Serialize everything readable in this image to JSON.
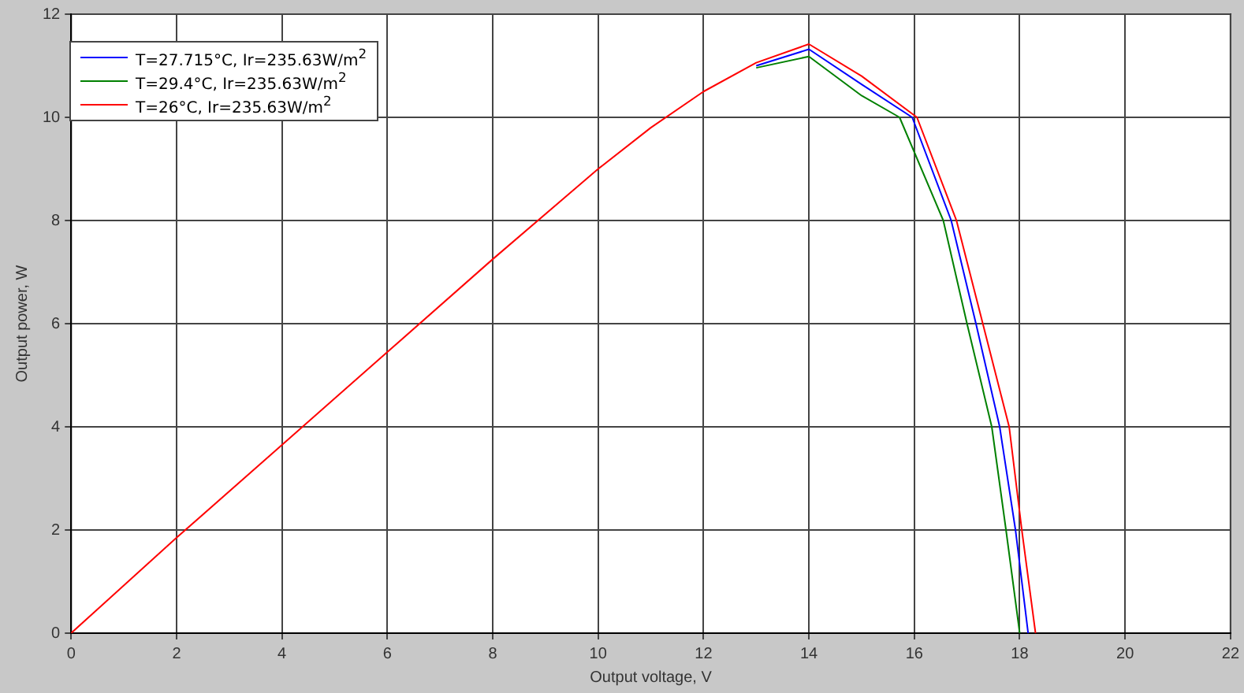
{
  "chart_data": {
    "type": "line",
    "xlabel": "Output voltage, V",
    "ylabel": "Output power, W",
    "xlim": [
      0,
      22
    ],
    "xticks": [
      0,
      2,
      4,
      6,
      8,
      10,
      12,
      14,
      16,
      18,
      20,
      22
    ],
    "ylim": [
      0,
      12
    ],
    "yticks": [
      0,
      2,
      4,
      6,
      8,
      10,
      12
    ],
    "grid": true,
    "legend": "top left",
    "marker": "none",
    "line_style": "solid",
    "series": [
      {
        "name": "T=27.715°C, Ir=235.63W/m$^{2}$",
        "color": "#0000ff",
        "x": [
          13,
          14,
          15,
          15.96,
          16.7,
          17.17,
          17.62,
          17.92,
          18.16
        ],
        "values": [
          11.0,
          11.32,
          10.64,
          10,
          8,
          6,
          4,
          2,
          0
        ]
      },
      {
        "name": "T=29.4°C, Ir=235.63W/m$^{2}$",
        "color": "#008000",
        "x": [
          13,
          14,
          15,
          15.72,
          16.55,
          17.0,
          17.47,
          17.74,
          18.0
        ],
        "values": [
          10.96,
          11.18,
          10.42,
          10,
          8,
          6,
          4,
          2,
          0
        ]
      },
      {
        "name": "T=26°C, Ir=235.63W/m$^{2}$",
        "color": "#ff0000",
        "x": [
          0,
          2,
          4,
          6,
          8,
          10,
          11,
          12,
          13,
          14,
          15,
          16.05,
          16.8,
          17.3,
          17.8,
          18.04,
          18.3
        ],
        "values": [
          0,
          1.85,
          3.65,
          5.45,
          7.25,
          9.0,
          9.8,
          10.5,
          11.06,
          11.42,
          10.8,
          10,
          8,
          6,
          4,
          2,
          0
        ]
      }
    ]
  }
}
